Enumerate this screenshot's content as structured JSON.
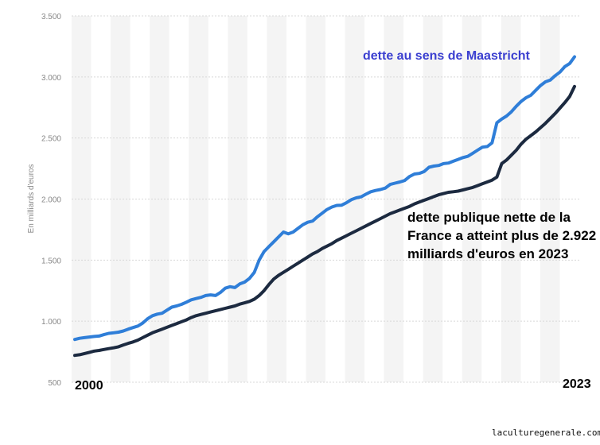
{
  "chart_data": {
    "type": "line",
    "title": "",
    "xlabel": "",
    "ylabel": "En milliards d'euros",
    "ylim": [
      500,
      3500
    ],
    "yticks": [
      500,
      1000,
      1500,
      2000,
      2500,
      3000,
      3500
    ],
    "ytick_labels": [
      "500",
      "1.000",
      "1.500",
      "2.000",
      "2.500",
      "3.000",
      "3.500"
    ],
    "grid": true,
    "quarters_per_year": 4,
    "x_start_label": "2000",
    "x_end_label": "2023",
    "series": [
      {
        "name": "dette au sens de Maastricht",
        "color": "#2f7ed8",
        "values": [
          850,
          860,
          865,
          870,
          875,
          878,
          890,
          900,
          905,
          910,
          920,
          935,
          948,
          960,
          985,
          1020,
          1045,
          1058,
          1065,
          1090,
          1115,
          1125,
          1138,
          1155,
          1175,
          1185,
          1195,
          1210,
          1215,
          1210,
          1235,
          1270,
          1282,
          1275,
          1305,
          1320,
          1350,
          1400,
          1500,
          1570,
          1610,
          1650,
          1690,
          1730,
          1715,
          1730,
          1760,
          1790,
          1810,
          1820,
          1855,
          1885,
          1915,
          1935,
          1948,
          1950,
          1970,
          1995,
          2010,
          2018,
          2040,
          2060,
          2070,
          2078,
          2090,
          2120,
          2130,
          2140,
          2152,
          2185,
          2205,
          2210,
          2225,
          2260,
          2270,
          2275,
          2290,
          2295,
          2310,
          2325,
          2340,
          2350,
          2375,
          2400,
          2425,
          2430,
          2460,
          2625,
          2655,
          2680,
          2715,
          2760,
          2800,
          2830,
          2850,
          2890,
          2930,
          2960,
          2975,
          3010,
          3040,
          3085,
          3110,
          3165
        ]
      },
      {
        "name": "dette publique nette",
        "color": "#1c2a40",
        "values": [
          720,
          725,
          735,
          745,
          755,
          760,
          768,
          775,
          782,
          790,
          805,
          818,
          830,
          845,
          865,
          885,
          905,
          920,
          935,
          950,
          965,
          980,
          995,
          1010,
          1030,
          1045,
          1055,
          1065,
          1075,
          1085,
          1095,
          1105,
          1115,
          1125,
          1140,
          1150,
          1162,
          1180,
          1210,
          1250,
          1300,
          1345,
          1375,
          1400,
          1425,
          1450,
          1475,
          1500,
          1525,
          1550,
          1570,
          1595,
          1615,
          1635,
          1660,
          1680,
          1700,
          1720,
          1740,
          1760,
          1780,
          1800,
          1820,
          1840,
          1860,
          1880,
          1895,
          1910,
          1925,
          1940,
          1960,
          1975,
          1990,
          2005,
          2020,
          2035,
          2045,
          2055,
          2060,
          2065,
          2075,
          2085,
          2095,
          2110,
          2125,
          2140,
          2155,
          2180,
          2290,
          2320,
          2360,
          2400,
          2450,
          2490,
          2520,
          2550,
          2585,
          2620,
          2660,
          2700,
          2745,
          2790,
          2840,
          2922
        ]
      }
    ],
    "annotations": [
      "dette au sens de Maastricht",
      "dette publique nette de la France a atteint plus de 2.922 milliards d'euros en 2023"
    ]
  },
  "watermark": "laculturegenerale.com"
}
